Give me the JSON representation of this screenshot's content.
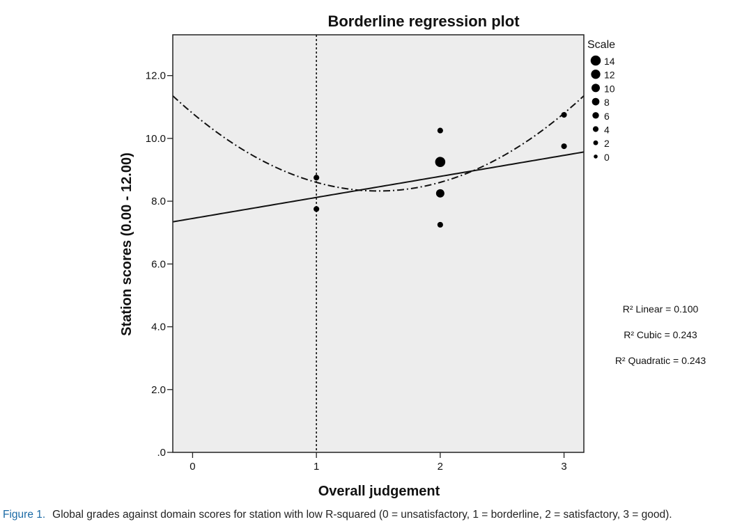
{
  "chart_data": {
    "type": "scatter",
    "title": "Borderline regression plot",
    "xlabel": "Overall judgement",
    "ylabel": "Station scores (0.00 - 12.00)",
    "xlim": [
      -0.16,
      3.16
    ],
    "ylim": [
      0,
      13.3
    ],
    "x_ticks": [
      0,
      1,
      2,
      3
    ],
    "x_tick_labels": [
      "0",
      "1",
      "2",
      "3"
    ],
    "y_ticks": [
      0,
      2,
      4,
      6,
      8,
      10,
      12
    ],
    "y_tick_labels": [
      ".0",
      "2.0",
      "4.0",
      "6.0",
      "8.0",
      "10.0",
      "12.0"
    ],
    "grid": false,
    "background": "#ededed",
    "reference_line": {
      "x": 1,
      "style": "dotted"
    },
    "points": [
      {
        "x": 1,
        "y": 8.75,
        "scale": 4
      },
      {
        "x": 1,
        "y": 7.75,
        "scale": 4
      },
      {
        "x": 2,
        "y": 10.25,
        "scale": 4
      },
      {
        "x": 2,
        "y": 9.25,
        "scale": 14
      },
      {
        "x": 2,
        "y": 8.25,
        "scale": 10
      },
      {
        "x": 2,
        "y": 7.25,
        "scale": 4
      },
      {
        "x": 3,
        "y": 10.75,
        "scale": 4
      },
      {
        "x": 3,
        "y": 9.75,
        "scale": 4
      }
    ],
    "fits": [
      {
        "type": "linear",
        "intercept": 7.45,
        "slope": 0.67,
        "style": "solid"
      },
      {
        "type": "quadratic",
        "coefficients": [
          10.8,
          -3.3,
          1.1
        ],
        "style": "dash-dot"
      }
    ],
    "legend": {
      "title": "Scale",
      "position": "right",
      "entries": [
        {
          "label": "14",
          "scale": 14
        },
        {
          "label": "12",
          "scale": 12
        },
        {
          "label": "10",
          "scale": 10
        },
        {
          "label": "8",
          "scale": 8
        },
        {
          "label": "6",
          "scale": 6
        },
        {
          "label": "4",
          "scale": 4
        },
        {
          "label": "2",
          "scale": 2
        },
        {
          "label": "0",
          "scale": 0
        }
      ]
    },
    "annotations": [
      "R² Linear = 0.100",
      "R² Cubic = 0.243",
      "R² Quadratic = 0.243"
    ]
  },
  "caption": {
    "label": "Figure 1.",
    "text": "Global grades against domain scores for station with low R-squared (0 = unsatisfactory, 1 = borderline, 2 = satisfactory, 3 = good)."
  }
}
